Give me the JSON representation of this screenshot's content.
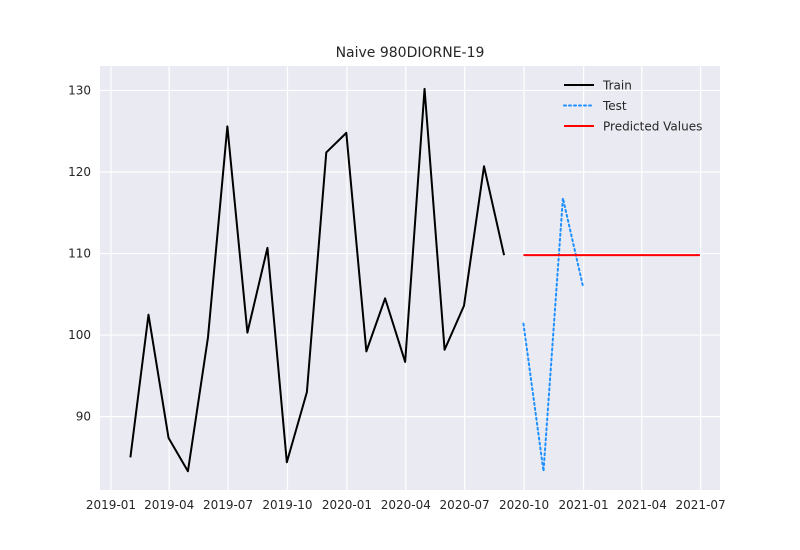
{
  "chart_data": {
    "type": "line",
    "title": "Naive 980DIORNE-19",
    "xlabel": "",
    "ylabel": "",
    "xlim": [
      "2018-12-15",
      "2021-07-31"
    ],
    "ylim": [
      81,
      133
    ],
    "grid": true,
    "legend_position": "top-right",
    "x_ticks": [
      {
        "date": "2019-01-01",
        "label": "2019-01"
      },
      {
        "date": "2019-04-01",
        "label": "2019-04"
      },
      {
        "date": "2019-07-01",
        "label": "2019-07"
      },
      {
        "date": "2019-10-01",
        "label": "2019-10"
      },
      {
        "date": "2020-01-01",
        "label": "2020-01"
      },
      {
        "date": "2020-04-01",
        "label": "2020-04"
      },
      {
        "date": "2020-07-01",
        "label": "2020-07"
      },
      {
        "date": "2020-10-01",
        "label": "2020-10"
      },
      {
        "date": "2021-01-01",
        "label": "2021-01"
      },
      {
        "date": "2021-04-01",
        "label": "2021-04"
      },
      {
        "date": "2021-07-01",
        "label": "2021-07"
      }
    ],
    "y_ticks": [
      90,
      100,
      110,
      120,
      130
    ],
    "series": [
      {
        "name": "Train",
        "color": "#000000",
        "style": "solid",
        "x": [
          "2019-01-31",
          "2019-02-28",
          "2019-03-31",
          "2019-04-30",
          "2019-05-31",
          "2019-06-30",
          "2019-07-31",
          "2019-08-31",
          "2019-09-30",
          "2019-10-31",
          "2019-11-30",
          "2019-12-31",
          "2020-01-31",
          "2020-02-29",
          "2020-03-31",
          "2020-04-30",
          "2020-05-31",
          "2020-06-30",
          "2020-07-31",
          "2020-08-31"
        ],
        "values": [
          85.0,
          102.5,
          87.4,
          83.3,
          99.7,
          125.6,
          100.3,
          110.7,
          84.4,
          93.0,
          122.4,
          124.8,
          98.0,
          104.5,
          96.7,
          130.2,
          98.2,
          103.6,
          120.7,
          109.8
        ]
      },
      {
        "name": "Test",
        "color": "#1e90ff",
        "style": "dotted",
        "x": [
          "2020-09-30",
          "2020-10-31",
          "2020-11-30",
          "2020-12-31"
        ],
        "values": [
          101.4,
          83.3,
          116.8,
          106.0
        ]
      },
      {
        "name": "Predicted Values",
        "color": "#ff0000",
        "style": "solid",
        "x": [
          "2020-09-30",
          "2021-06-30"
        ],
        "values": [
          109.8,
          109.8
        ]
      }
    ]
  }
}
